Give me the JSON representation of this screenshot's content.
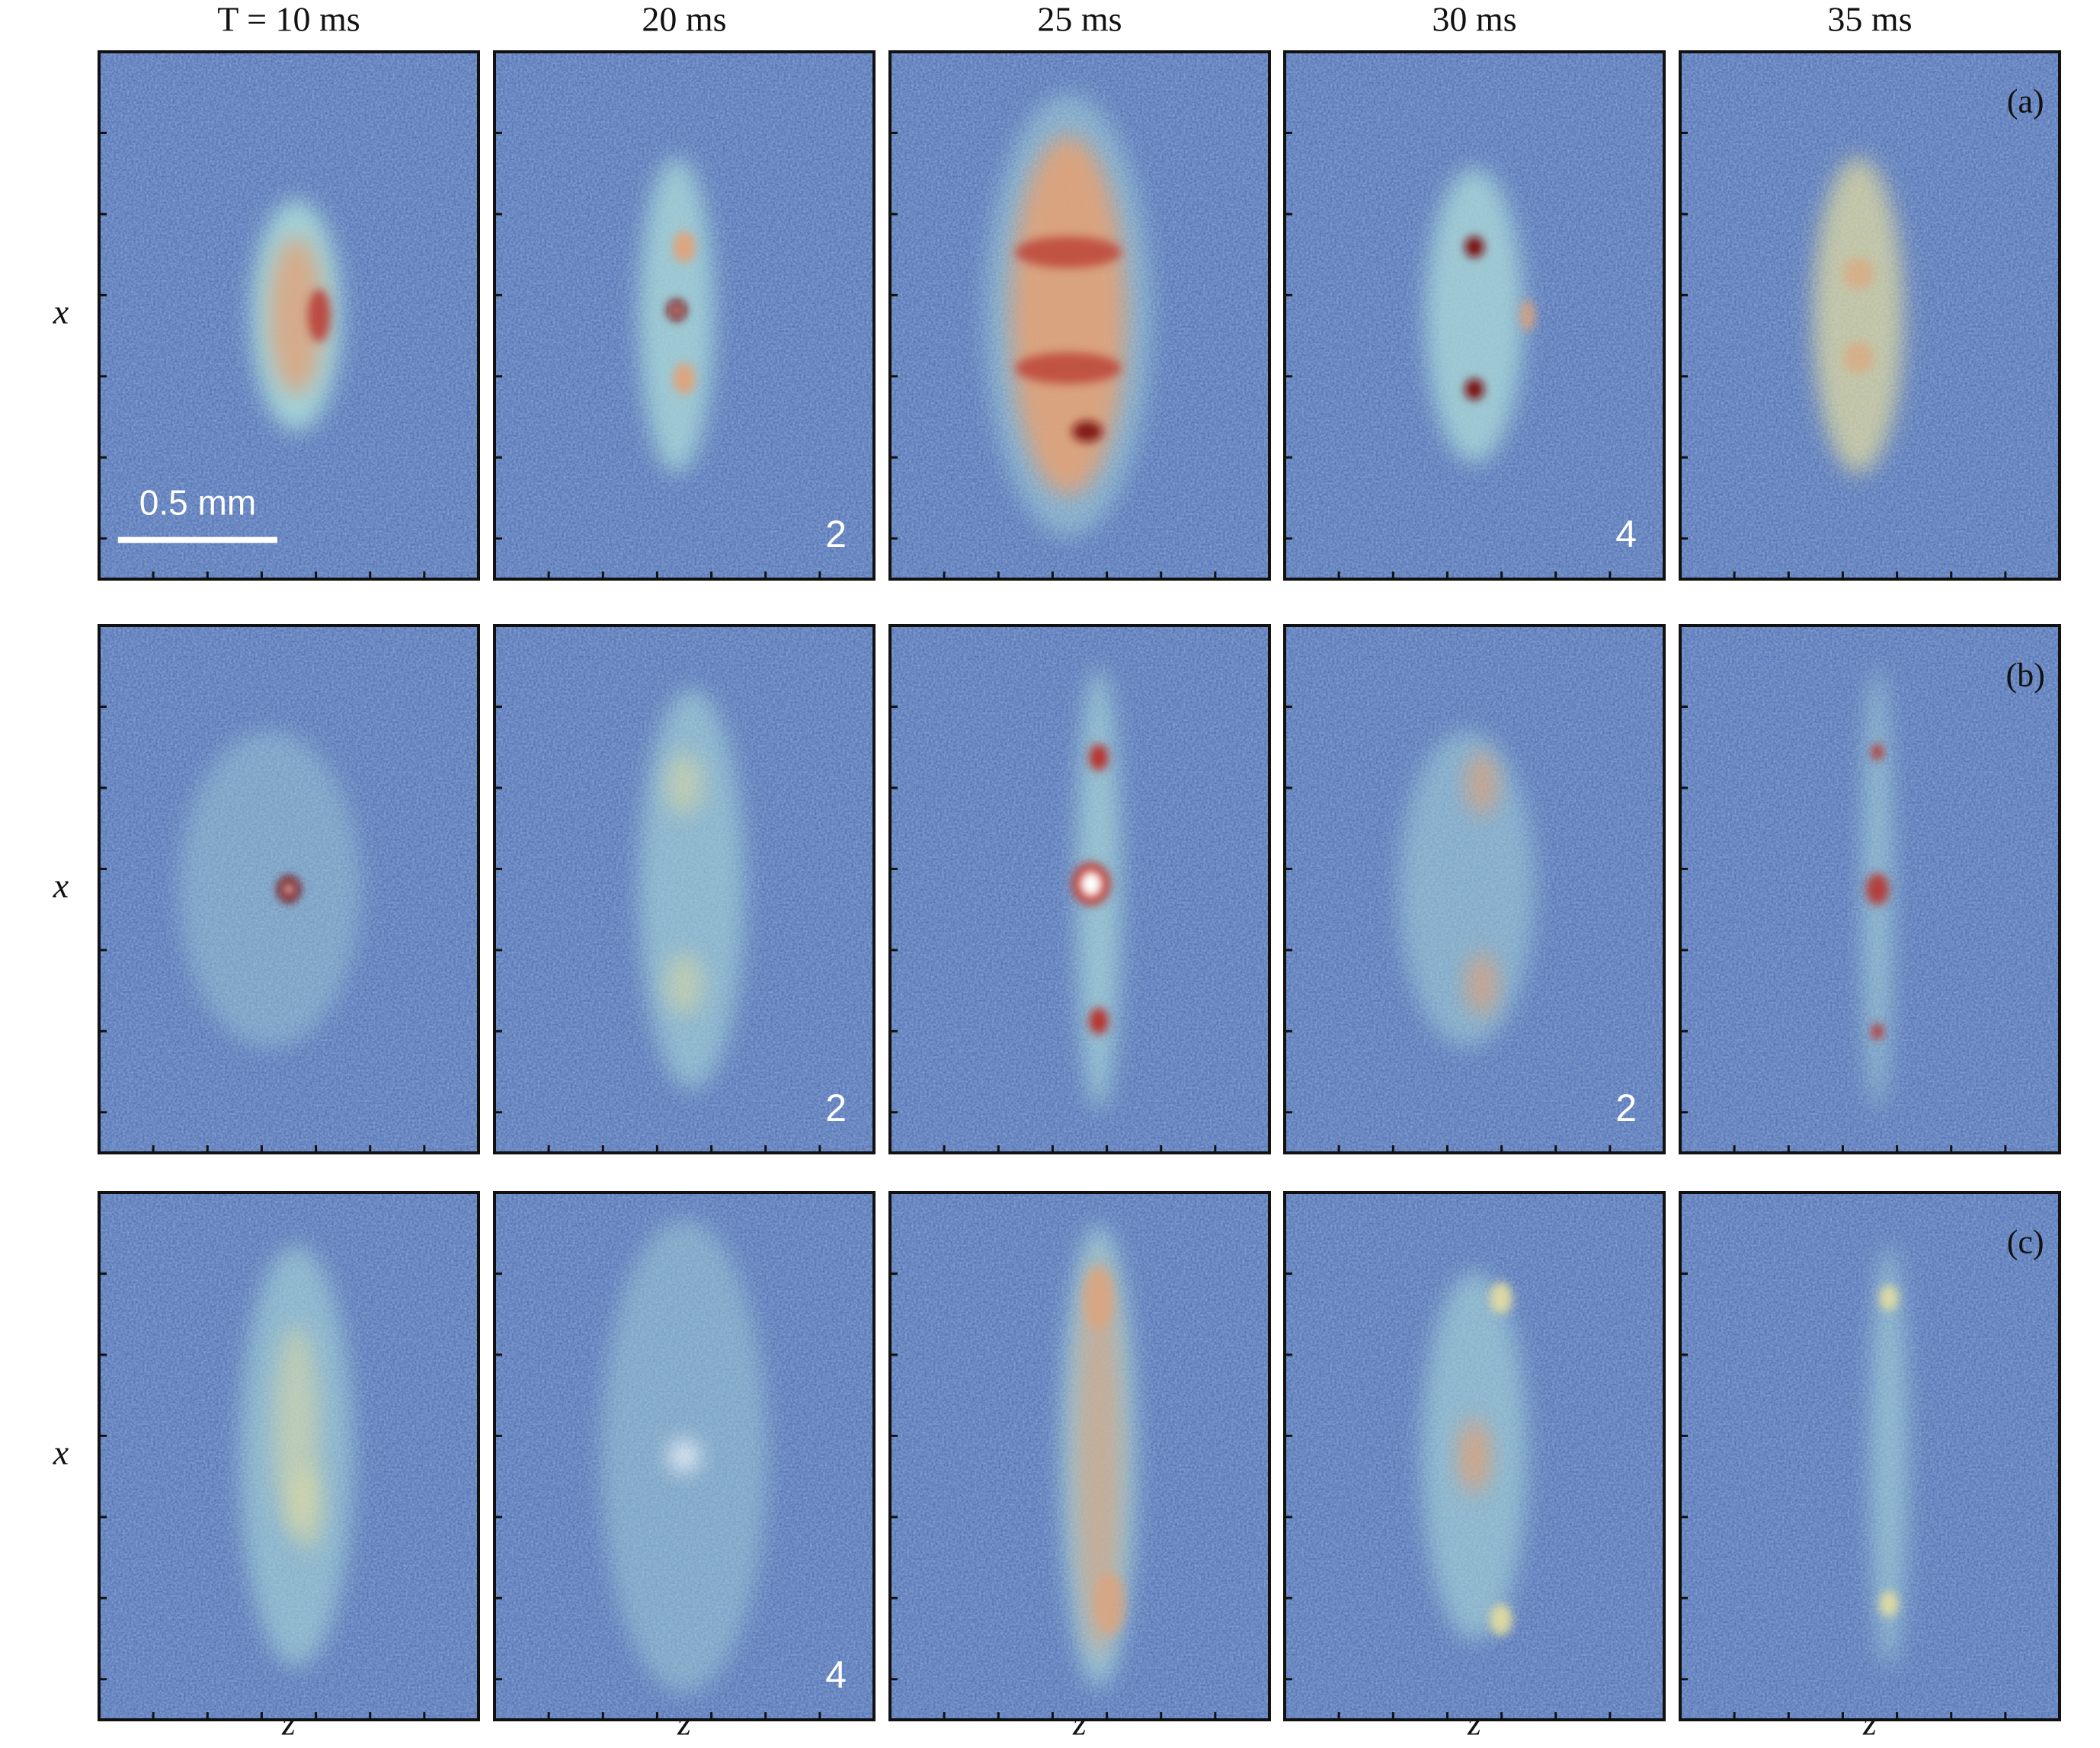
{
  "figure": {
    "column_headers": [
      "T = 10 ms",
      "20 ms",
      "25 ms",
      "30 ms",
      "35 ms"
    ],
    "x_labels": [
      "z",
      "z",
      "z",
      "z",
      "z"
    ],
    "scale_bar": "0.5 mm",
    "rows": [
      {
        "panel_label": "(a)",
        "y_label": "x",
        "panel_numbers": [
          null,
          "2",
          null,
          "4",
          null
        ]
      },
      {
        "panel_label": "(b)",
        "y_label": "x",
        "panel_numbers": [
          null,
          "2",
          null,
          "2",
          null
        ]
      },
      {
        "panel_label": "(c)",
        "y_label": "x",
        "panel_numbers": [
          null,
          "4",
          null,
          null,
          null
        ]
      }
    ]
  }
}
